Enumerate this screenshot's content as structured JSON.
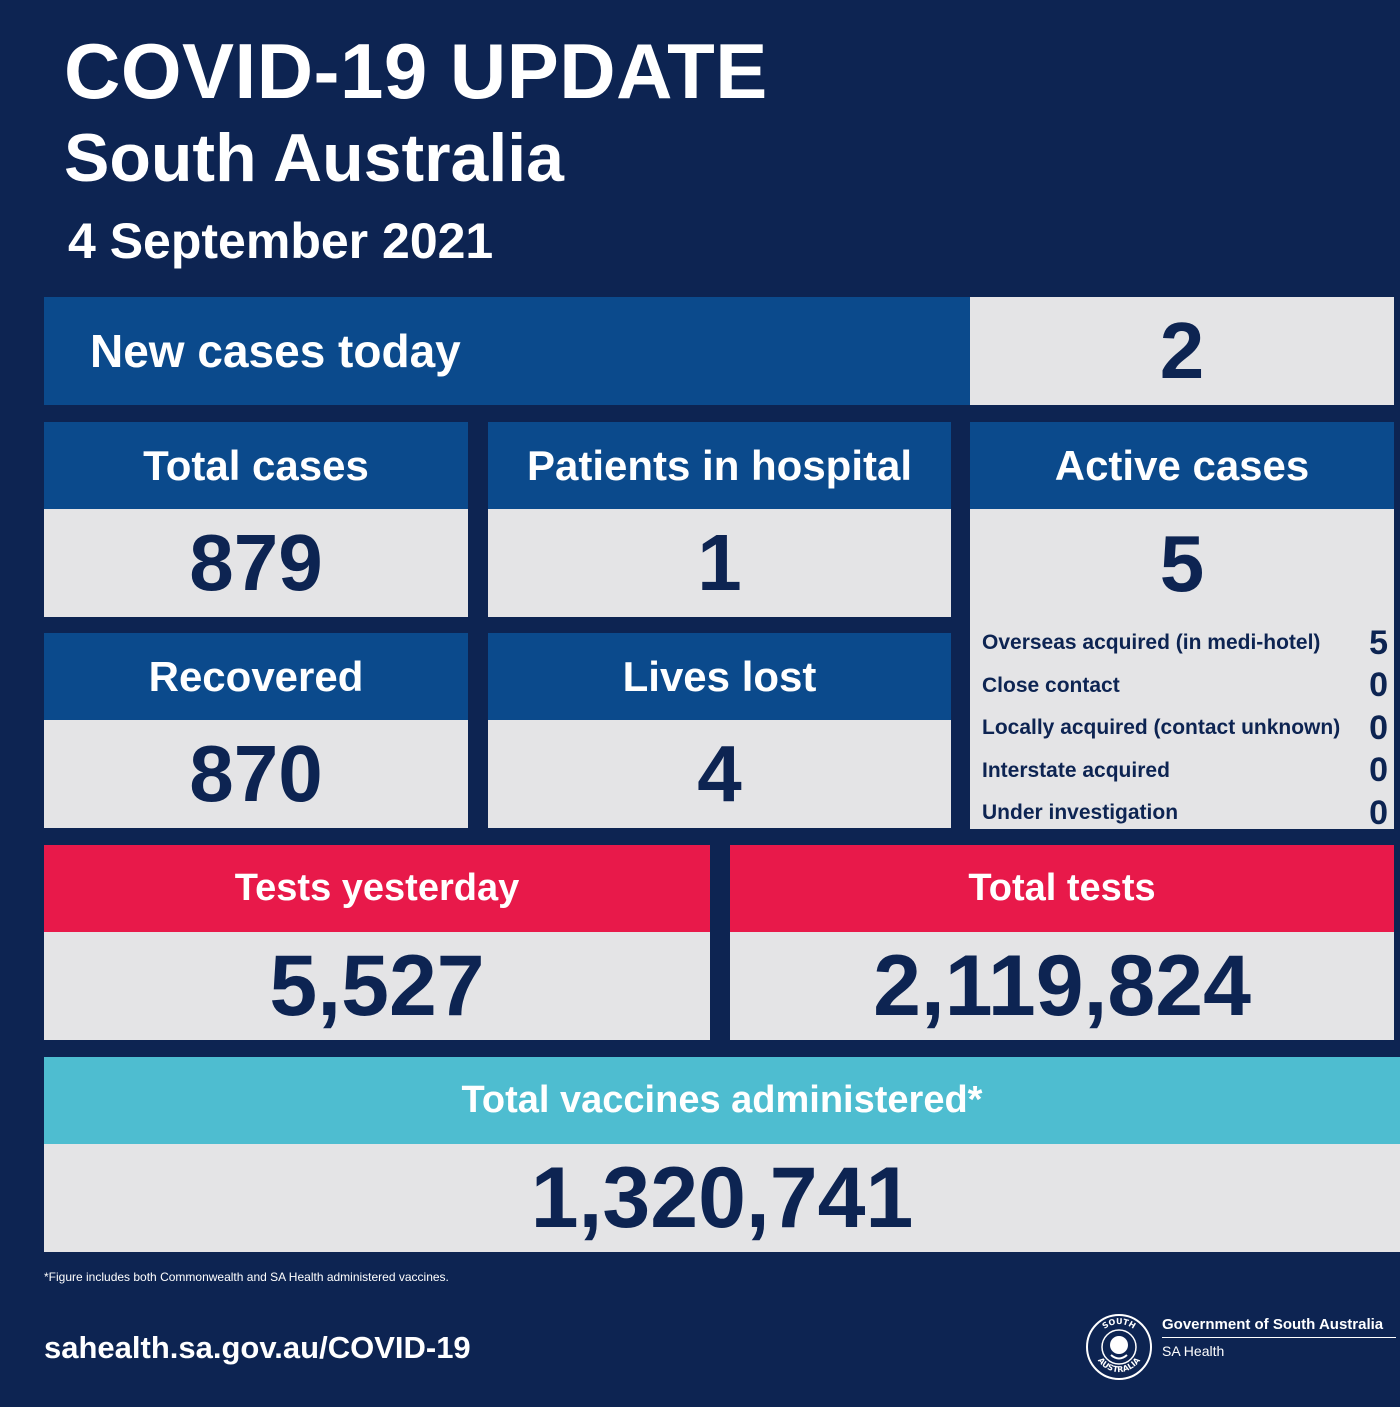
{
  "header": {
    "title": "COVID-19 UPDATE",
    "region": "South Australia",
    "date": "4 September 2021"
  },
  "new_cases": {
    "label": "New cases today",
    "value": "2"
  },
  "total_cases": {
    "label": "Total cases",
    "value": "879"
  },
  "patients_in_hospital": {
    "label": "Patients in hospital",
    "value": "1"
  },
  "active_cases": {
    "label": "Active cases",
    "value": "5",
    "breakdown": [
      {
        "label": "Overseas acquired (in medi-hotel)",
        "value": "5"
      },
      {
        "label": "Close contact",
        "value": "0"
      },
      {
        "label": "Locally acquired (contact unknown)",
        "value": "0"
      },
      {
        "label": "Interstate acquired",
        "value": "0"
      },
      {
        "label": "Under investigation",
        "value": "0"
      }
    ]
  },
  "recovered": {
    "label": "Recovered",
    "value": "870"
  },
  "lives_lost": {
    "label": "Lives lost",
    "value": "4"
  },
  "tests_yesterday": {
    "label": "Tests yesterday",
    "value": "5,527"
  },
  "total_tests": {
    "label": "Total tests",
    "value": "2,119,824"
  },
  "vaccines": {
    "label": "Total vaccines administered*",
    "value": "1,320,741"
  },
  "footer": {
    "footnote": "*Figure includes both Commonwealth and SA Health administered vaccines.",
    "url": "sahealth.sa.gov.au/COVID-19",
    "gov_name": "Government of South Australia",
    "gov_sub": "SA Health",
    "seal_text_top": "SOUTH",
    "seal_text_bottom": "AUSTRALIA"
  },
  "colors": {
    "background": "#0d2452",
    "header_blue": "#0b4a8c",
    "header_red": "#e8194a",
    "header_teal": "#4ebdd0",
    "value_panel": "#e4e4e6",
    "value_text": "#0d2452"
  }
}
